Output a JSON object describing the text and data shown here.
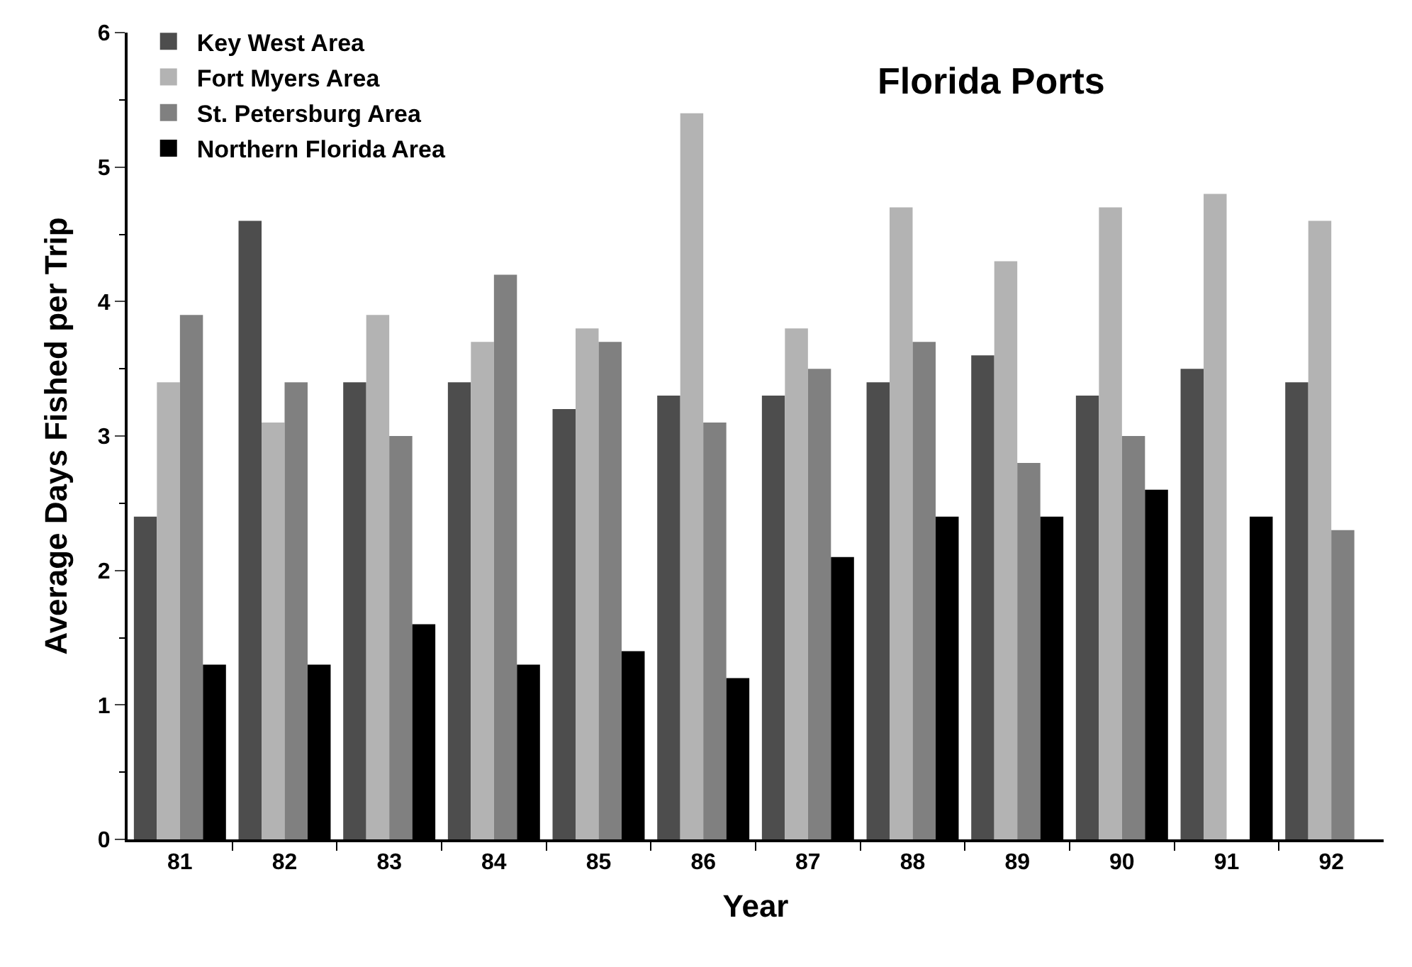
{
  "chart_data": {
    "type": "bar",
    "title": "Florida Ports",
    "xlabel": "Year",
    "ylabel": "Average Days Fished per Trip",
    "categories": [
      "81",
      "82",
      "83",
      "84",
      "85",
      "86",
      "87",
      "88",
      "89",
      "90",
      "91",
      "92"
    ],
    "series": [
      {
        "name": "Key West Area",
        "color": "#4d4d4d",
        "values": [
          2.4,
          4.6,
          3.4,
          3.4,
          3.2,
          3.3,
          3.3,
          3.4,
          3.6,
          3.3,
          3.5,
          3.4
        ]
      },
      {
        "name": "Fort Myers Area",
        "color": "#b3b3b3",
        "values": [
          3.4,
          3.1,
          3.9,
          3.7,
          3.8,
          5.4,
          3.8,
          4.7,
          4.3,
          4.7,
          4.8,
          4.6
        ]
      },
      {
        "name": "St. Petersburg Area",
        "color": "#808080",
        "values": [
          3.9,
          3.4,
          3.0,
          4.2,
          3.7,
          3.1,
          3.5,
          3.7,
          2.8,
          3.0,
          null,
          2.3
        ]
      },
      {
        "name": "Northern Florida Area",
        "color": "#000000",
        "values": [
          1.3,
          1.3,
          1.6,
          1.3,
          1.4,
          1.2,
          2.1,
          2.4,
          2.4,
          2.6,
          2.4,
          null
        ]
      }
    ],
    "ylim": [
      0,
      6
    ],
    "yticks": [
      0,
      1,
      2,
      3,
      4,
      5,
      6
    ],
    "legend": "top left"
  }
}
